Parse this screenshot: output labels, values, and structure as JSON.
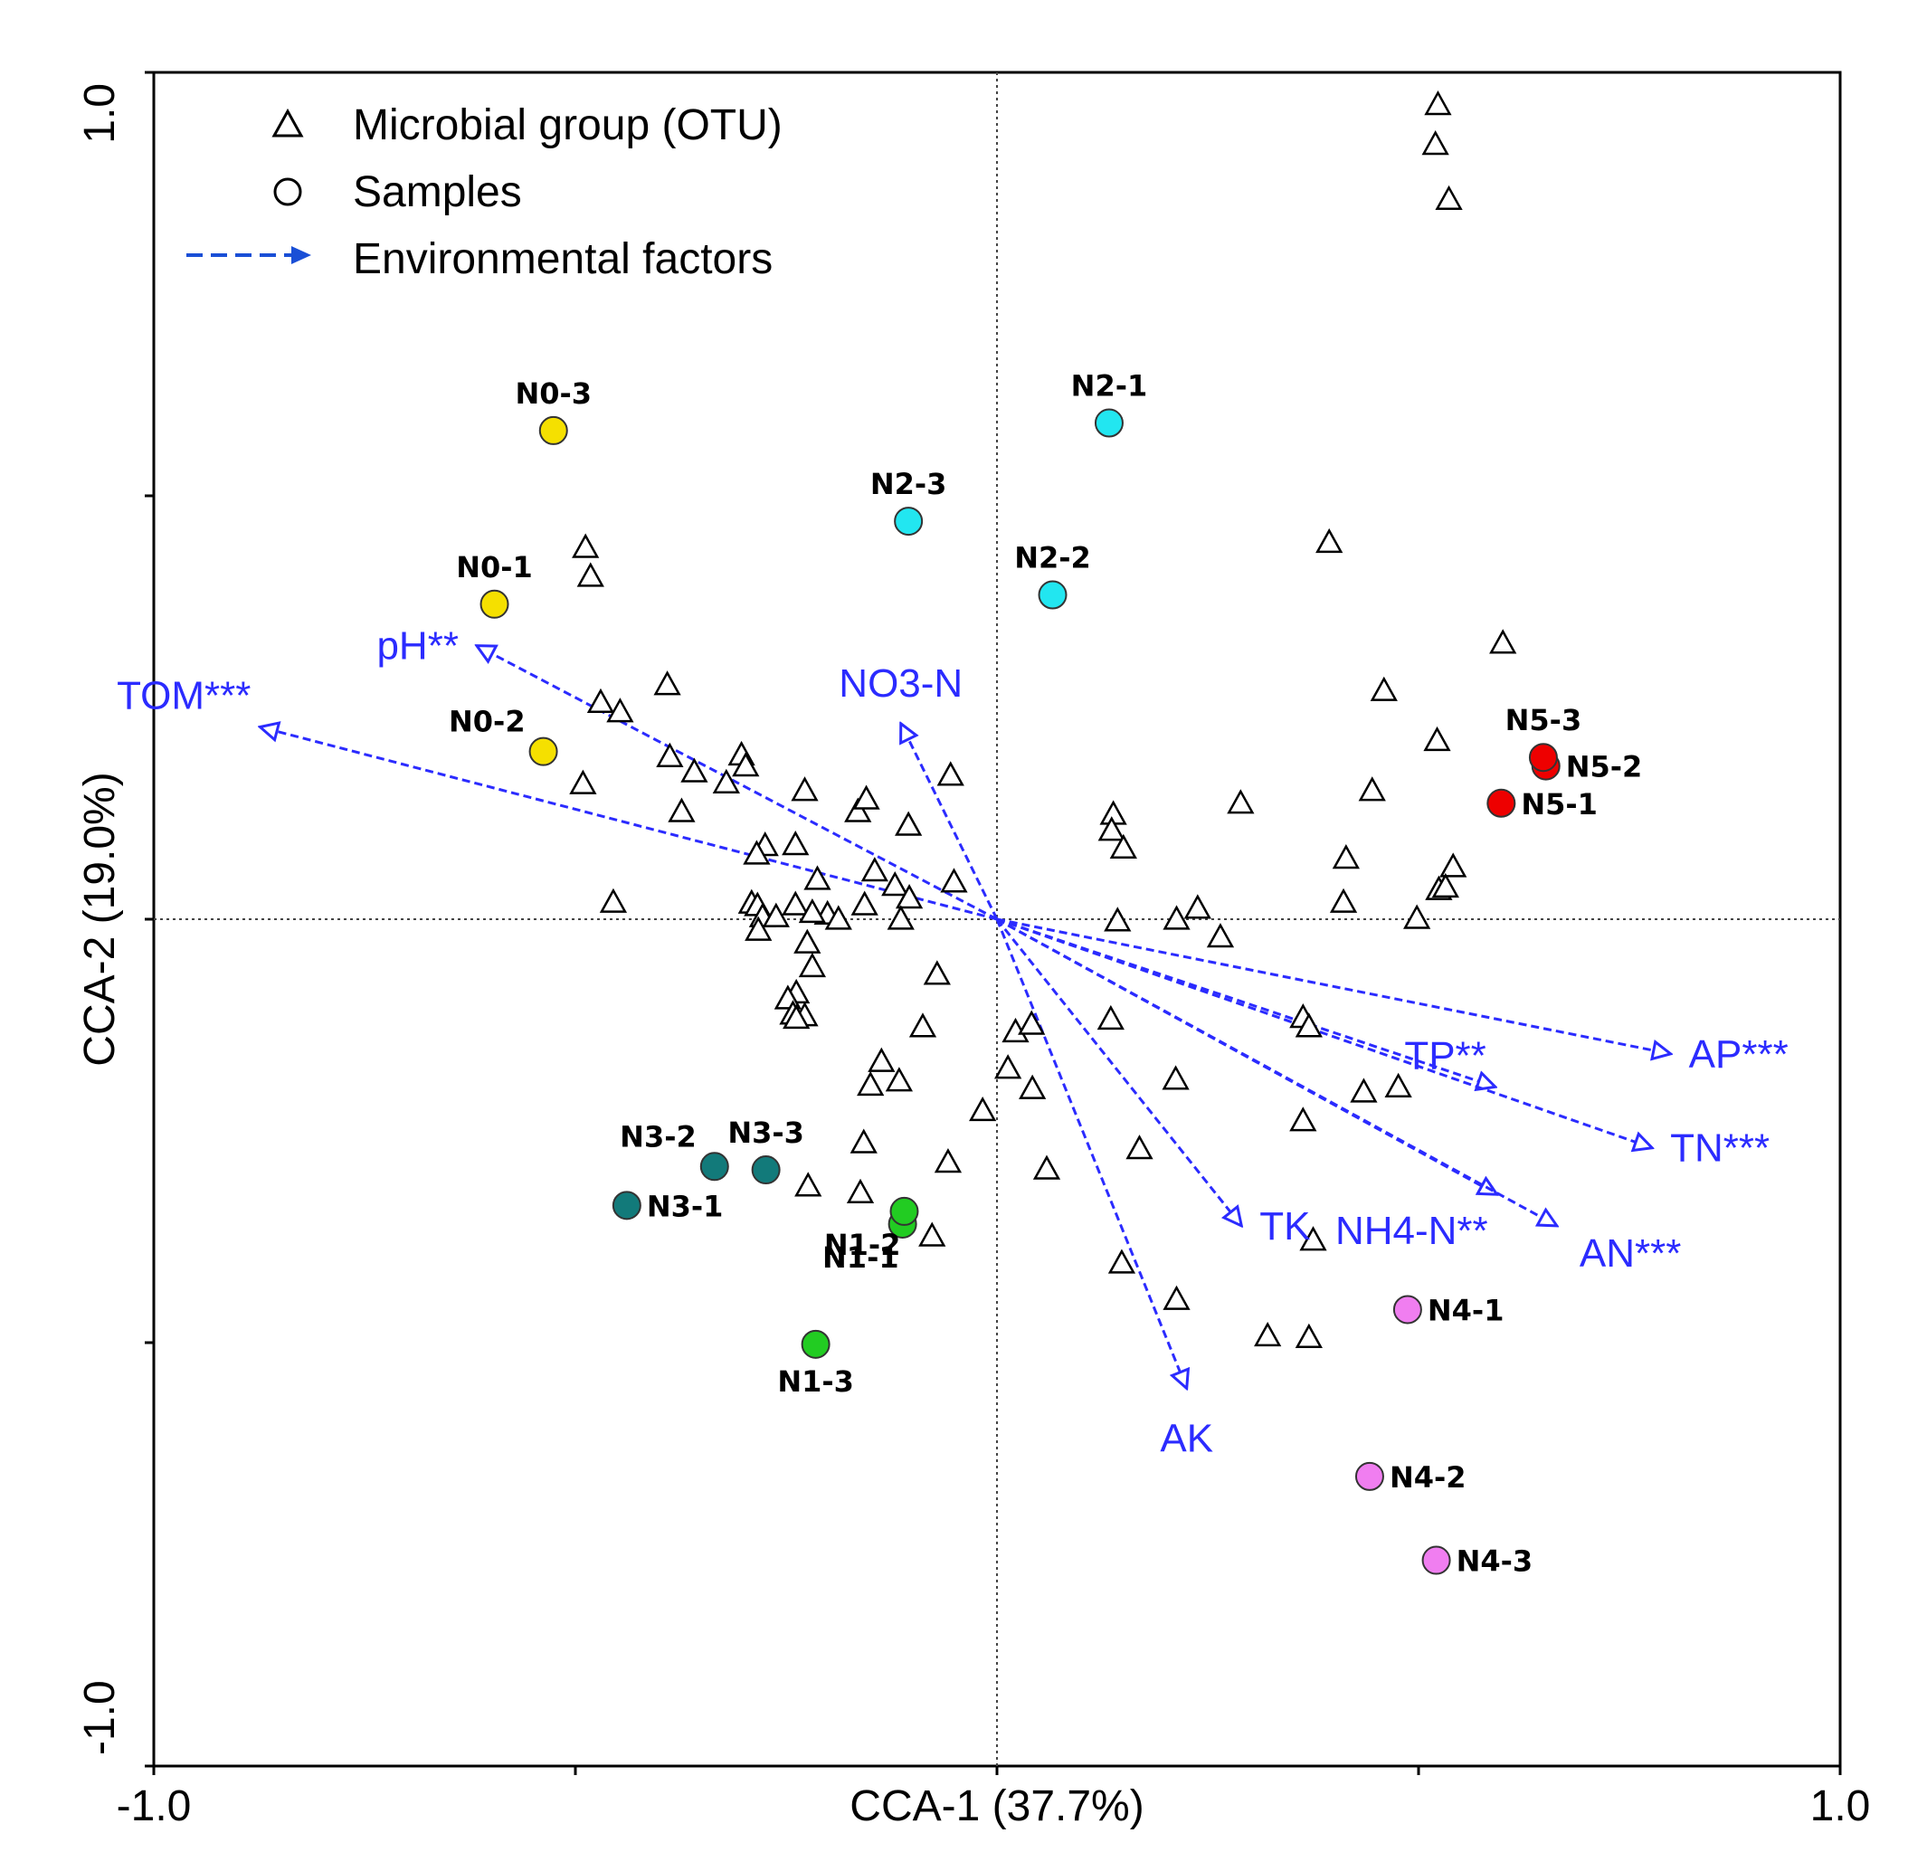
{
  "chart_data": {
    "type": "scatter",
    "subtype": "CCA biplot",
    "title": "",
    "xlabel": "CCA-1 (37.7%)",
    "ylabel": "CCA-2 (19.0%)",
    "xlim": [
      -1.0,
      1.0
    ],
    "ylim": [
      -1.0,
      1.0
    ],
    "x_tick_labels": [
      {
        "value": -1.0,
        "label": "-1.0"
      },
      {
        "value": 1.0,
        "label": "1.0"
      }
    ],
    "y_tick_labels": [
      {
        "value": 1.0,
        "label": "1.0"
      },
      {
        "value": -1.0,
        "label": "-1.0"
      }
    ],
    "minor_ticks": [
      -0.5,
      0,
      0.5
    ],
    "reference_lines": {
      "x": 0,
      "y": 0,
      "style": "dotted"
    },
    "grid": false,
    "legend": {
      "position": "top-left",
      "entries": [
        {
          "symbol": "triangle",
          "label": "Microbial group (OTU)"
        },
        {
          "symbol": "circle",
          "label": "Samples"
        },
        {
          "symbol": "dashed-arrow",
          "label": "Environmental factors"
        }
      ]
    },
    "colors": {
      "otu": "#000000",
      "arrow": "#2b2bff",
      "arrow_label": "#2b2bff",
      "N0": "#f5e000",
      "N1": "#22cc22",
      "N2": "#22e6f0",
      "N3": "#127a7a",
      "N4": "#f07ef0",
      "N5": "#ee0000"
    },
    "samples": [
      {
        "label": "N0-1",
        "group": "N0",
        "x": -0.596,
        "y": 0.372,
        "label_pos": "above"
      },
      {
        "label": "N0-2",
        "group": "N0",
        "x": -0.538,
        "y": 0.198,
        "label_pos": "above-left"
      },
      {
        "label": "N0-3",
        "group": "N0",
        "x": -0.526,
        "y": 0.577,
        "label_pos": "above"
      },
      {
        "label": "N1-1",
        "group": "N1",
        "x": -0.112,
        "y": -0.36,
        "label_pos": "below-left"
      },
      {
        "label": "N1-2",
        "group": "N1",
        "x": -0.11,
        "y": -0.345,
        "label_pos": "below-left"
      },
      {
        "label": "N1-3",
        "group": "N1",
        "x": -0.215,
        "y": -0.502,
        "label_pos": "below"
      },
      {
        "label": "N2-1",
        "group": "N2",
        "x": 0.133,
        "y": 0.586,
        "label_pos": "above"
      },
      {
        "label": "N2-2",
        "group": "N2",
        "x": 0.066,
        "y": 0.383,
        "label_pos": "above"
      },
      {
        "label": "N2-3",
        "group": "N2",
        "x": -0.105,
        "y": 0.47,
        "label_pos": "above"
      },
      {
        "label": "N3-1",
        "group": "N3",
        "x": -0.439,
        "y": -0.338,
        "label_pos": "right"
      },
      {
        "label": "N3-2",
        "group": "N3",
        "x": -0.335,
        "y": -0.292,
        "label_pos": "above-left"
      },
      {
        "label": "N3-3",
        "group": "N3",
        "x": -0.274,
        "y": -0.296,
        "label_pos": "above"
      },
      {
        "label": "N4-1",
        "group": "N4",
        "x": 0.487,
        "y": -0.461,
        "label_pos": "right"
      },
      {
        "label": "N4-2",
        "group": "N4",
        "x": 0.442,
        "y": -0.658,
        "label_pos": "right"
      },
      {
        "label": "N4-3",
        "group": "N4",
        "x": 0.521,
        "y": -0.757,
        "label_pos": "right"
      },
      {
        "label": "N5-1",
        "group": "N5",
        "x": 0.598,
        "y": 0.137,
        "label_pos": "right"
      },
      {
        "label": "N5-2",
        "group": "N5",
        "x": 0.651,
        "y": 0.181,
        "label_pos": "right"
      },
      {
        "label": "N5-3",
        "group": "N5",
        "x": 0.648,
        "y": 0.191,
        "label_pos": "above"
      }
    ],
    "env_factors": [
      {
        "label": "TOM***",
        "x": -0.874,
        "y": 0.227,
        "label_pos": "above-left"
      },
      {
        "label": "pH**",
        "x": -0.617,
        "y": 0.323,
        "label_pos": "left"
      },
      {
        "label": "NO3-N",
        "x": -0.114,
        "y": 0.231,
        "label_pos": "above"
      },
      {
        "label": "AP***",
        "x": 0.799,
        "y": -0.159,
        "label_pos": "right"
      },
      {
        "label": "TP**",
        "x": 0.591,
        "y": -0.198,
        "label_pos": "above-left"
      },
      {
        "label": "TN***",
        "x": 0.777,
        "y": -0.27,
        "label_pos": "right"
      },
      {
        "label": "NH4-N**",
        "x": 0.593,
        "y": -0.325,
        "label_pos": "below-left"
      },
      {
        "label": "AN***",
        "x": 0.664,
        "y": -0.362,
        "label_pos": "below-right"
      },
      {
        "label": "TK",
        "x": 0.29,
        "y": -0.362,
        "label_pos": "right"
      },
      {
        "label": "AK",
        "x": 0.225,
        "y": -0.554,
        "label_pos": "below"
      }
    ],
    "otus": [
      [
        0.523,
        0.962
      ],
      [
        0.52,
        0.915
      ],
      [
        0.536,
        0.85
      ],
      [
        0.394,
        0.445
      ],
      [
        0.6,
        0.326
      ],
      [
        0.459,
        0.27
      ],
      [
        0.522,
        0.211
      ],
      [
        0.445,
        0.152
      ],
      [
        0.289,
        0.137
      ],
      [
        0.138,
        0.124
      ],
      [
        0.136,
        0.105
      ],
      [
        0.15,
        0.084
      ],
      [
        0.414,
        0.072
      ],
      [
        0.541,
        0.062
      ],
      [
        0.524,
        0.035
      ],
      [
        0.532,
        0.038
      ],
      [
        0.411,
        0.02
      ],
      [
        0.238,
        0.013
      ],
      [
        0.498,
        0.001
      ],
      [
        0.213,
        0.0
      ],
      [
        0.143,
        -0.002
      ],
      [
        0.265,
        -0.021
      ],
      [
        -0.488,
        0.439
      ],
      [
        -0.482,
        0.405
      ],
      [
        -0.47,
        0.256
      ],
      [
        -0.447,
        0.245
      ],
      [
        -0.391,
        0.277
      ],
      [
        -0.388,
        0.192
      ],
      [
        -0.359,
        0.174
      ],
      [
        -0.491,
        0.16
      ],
      [
        -0.374,
        0.127
      ],
      [
        -0.321,
        0.161
      ],
      [
        -0.303,
        0.194
      ],
      [
        -0.298,
        0.181
      ],
      [
        -0.239,
        0.088
      ],
      [
        -0.228,
        0.152
      ],
      [
        -0.213,
        0.047
      ],
      [
        -0.275,
        0.087
      ],
      [
        -0.285,
        0.077
      ],
      [
        -0.145,
        0.057
      ],
      [
        -0.165,
        0.127
      ],
      [
        -0.155,
        0.142
      ],
      [
        -0.105,
        0.111
      ],
      [
        -0.055,
        0.17
      ],
      [
        -0.121,
        0.04
      ],
      [
        -0.104,
        0.025
      ],
      [
        -0.051,
        0.044
      ],
      [
        -0.455,
        0.02
      ],
      [
        -0.291,
        0.019
      ],
      [
        -0.284,
        0.016
      ],
      [
        -0.239,
        0.017
      ],
      [
        -0.278,
        0.003
      ],
      [
        -0.262,
        0.003
      ],
      [
        -0.201,
        0.006
      ],
      [
        -0.219,
        0.008
      ],
      [
        -0.188,
        0.0
      ],
      [
        -0.157,
        0.017
      ],
      [
        -0.114,
        0.0
      ],
      [
        -0.283,
        -0.013
      ],
      [
        -0.225,
        -0.028
      ],
      [
        -0.219,
        -0.056
      ],
      [
        -0.071,
        -0.065
      ],
      [
        -0.238,
        -0.087
      ],
      [
        -0.248,
        -0.094
      ],
      [
        -0.242,
        -0.112
      ],
      [
        -0.228,
        -0.114
      ],
      [
        -0.238,
        -0.117
      ],
      [
        -0.088,
        -0.127
      ],
      [
        0.135,
        -0.118
      ],
      [
        0.022,
        -0.133
      ],
      [
        0.041,
        -0.124
      ],
      [
        -0.137,
        -0.168
      ],
      [
        -0.15,
        -0.196
      ],
      [
        -0.116,
        -0.191
      ],
      [
        0.013,
        -0.176
      ],
      [
        0.042,
        -0.2
      ],
      [
        -0.017,
        -0.226
      ],
      [
        0.363,
        -0.116
      ],
      [
        0.37,
        -0.127
      ],
      [
        0.212,
        -0.189
      ],
      [
        0.435,
        -0.204
      ],
      [
        0.476,
        -0.198
      ],
      [
        0.363,
        -0.238
      ],
      [
        -0.158,
        -0.264
      ],
      [
        0.169,
        -0.271
      ],
      [
        -0.058,
        -0.287
      ],
      [
        0.059,
        -0.295
      ],
      [
        -0.224,
        -0.315
      ],
      [
        -0.162,
        -0.323
      ],
      [
        0.375,
        -0.379
      ],
      [
        -0.077,
        -0.374
      ],
      [
        0.148,
        -0.406
      ],
      [
        0.213,
        -0.449
      ],
      [
        0.321,
        -0.492
      ],
      [
        0.37,
        -0.494
      ]
    ]
  }
}
